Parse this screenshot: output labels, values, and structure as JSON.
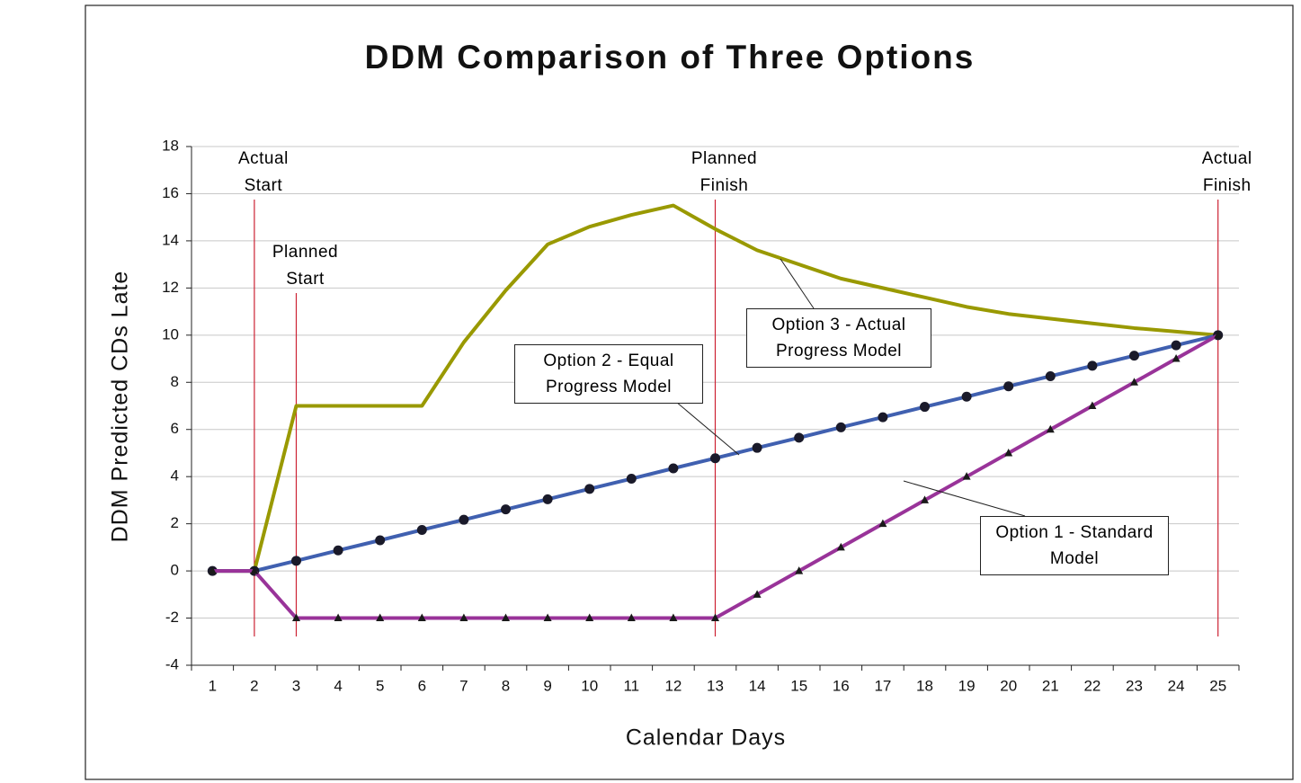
{
  "chart_data": {
    "type": "line",
    "title": "DDM Comparison of Three Options",
    "x_label": "Calendar Days",
    "y_label": "DDM Predicted CDs Late",
    "categories": [
      "1",
      "2",
      "3",
      "4",
      "5",
      "6",
      "7",
      "8",
      "9",
      "10",
      "11",
      "12",
      "13",
      "14",
      "15",
      "16",
      "17",
      "18",
      "19",
      "20",
      "21",
      "22",
      "23",
      "24",
      "25"
    ],
    "ylim": [
      -4,
      18
    ],
    "yticks": [
      -4,
      -2,
      0,
      2,
      4,
      6,
      8,
      10,
      12,
      14,
      16,
      18
    ],
    "grid": true,
    "series": [
      {
        "name": "Option 3 - Actual Progress Model",
        "color": "#999900",
        "marker": "none",
        "values": [
          0,
          0,
          7,
          7,
          7,
          7,
          9.7,
          11.9,
          13.85,
          14.6,
          15.1,
          15.5,
          14.5,
          13.6,
          13.0,
          12.4,
          12.0,
          11.6,
          11.2,
          10.9,
          10.7,
          10.5,
          10.3,
          10.15,
          10
        ]
      },
      {
        "name": "Option 2 - Equal Progress Model",
        "color": "#4060b0",
        "marker": "circle",
        "values": [
          0,
          0,
          0.43,
          0.87,
          1.3,
          1.74,
          2.17,
          2.61,
          3.04,
          3.48,
          3.91,
          4.35,
          4.78,
          5.22,
          5.65,
          6.09,
          6.52,
          6.96,
          7.39,
          7.83,
          8.26,
          8.7,
          9.13,
          9.57,
          10
        ]
      },
      {
        "name": "Option 1 - Standard Model",
        "color": "#993399",
        "marker": "triangle",
        "values": [
          0,
          0,
          -2,
          -2,
          -2,
          -2,
          -2,
          -2,
          -2,
          -2,
          -2,
          -2,
          -2,
          -1,
          0,
          1,
          2,
          3,
          4,
          5,
          6,
          7,
          8,
          9,
          10
        ]
      }
    ],
    "annotations": [
      {
        "text": "Actual Start",
        "category": "2"
      },
      {
        "text": "Planned Start",
        "category": "3"
      },
      {
        "text": "Planned Finish",
        "category": "13"
      },
      {
        "text": "Actual Finish",
        "category": "25"
      }
    ]
  }
}
